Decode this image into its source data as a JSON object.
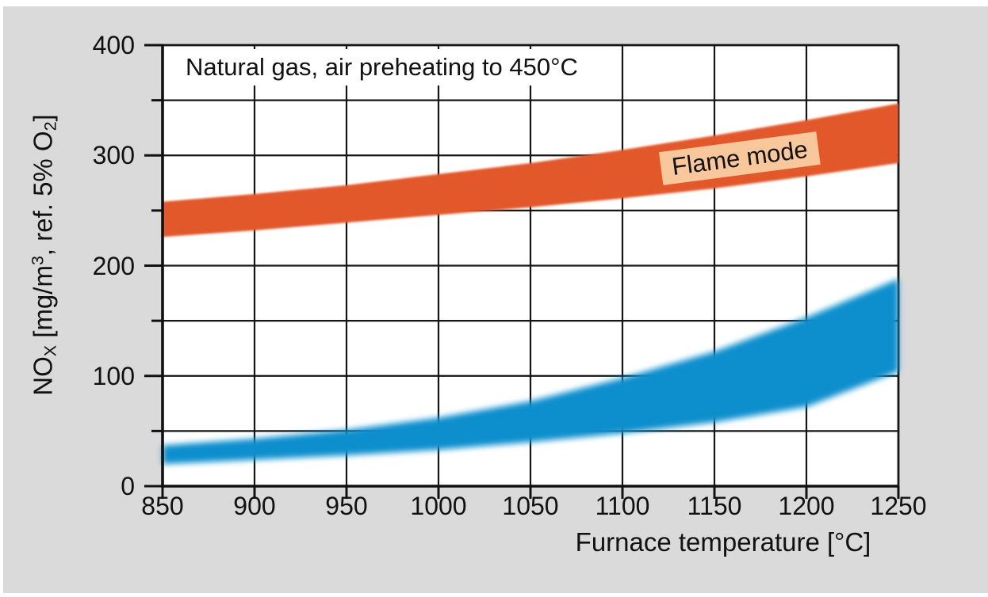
{
  "colors": {
    "page_bg": "#FFFFFF",
    "panel_bg": "#DADADA",
    "plot_bg": "#FFFFFF",
    "grid": "#151515",
    "axis": "#111111",
    "text": "#111111",
    "flame_band": "#E2582C",
    "blue_band": "#0A8FCE",
    "flame_label_bg": "#F8C79B",
    "annotation_bg": "#FFFFFF"
  },
  "chart_data": {
    "type": "area",
    "annotation": "Natural gas, air preheating to 450°C",
    "xlabel": "Furnace temperature [°C]",
    "ylabel": "NOₓ [mg/m³, ref. 5% O₂]",
    "ylabel_parts": [
      {
        "text": "NO"
      },
      {
        "text": "X",
        "script": "sub"
      },
      {
        "text": " [mg/m"
      },
      {
        "text": "3",
        "script": "sup"
      },
      {
        "text": ", ref. 5% O"
      },
      {
        "text": "2",
        "script": "sub"
      },
      {
        "text": "]"
      }
    ],
    "xlim": [
      850,
      1250
    ],
    "ylim": [
      0,
      400
    ],
    "x_ticks": [
      850,
      900,
      950,
      1000,
      1050,
      1100,
      1150,
      1200,
      1250
    ],
    "y_major_ticks": [
      0,
      100,
      200,
      300,
      400
    ],
    "y_minor_ticks": [
      50,
      150,
      250,
      350
    ],
    "grid": "on",
    "x": [
      850,
      900,
      950,
      1000,
      1050,
      1100,
      1150,
      1200,
      1250
    ],
    "series": [
      {
        "name": "flame-mode-band",
        "label": "Flame mode",
        "color": "#E2582C",
        "band_upper": [
          258,
          265,
          273,
          283,
          293,
          305,
          318,
          332,
          347
        ],
        "band_lower": [
          226,
          232,
          239,
          246,
          253,
          261,
          270,
          281,
          293
        ]
      },
      {
        "name": "blue-band-unlabeled",
        "label": "",
        "color": "#0A8FCE",
        "band_upper": [
          37,
          43,
          51,
          62,
          77,
          98,
          122,
          153,
          188
        ],
        "band_lower": [
          20,
          24,
          28,
          33,
          40,
          48,
          58,
          72,
          104
        ]
      }
    ]
  }
}
